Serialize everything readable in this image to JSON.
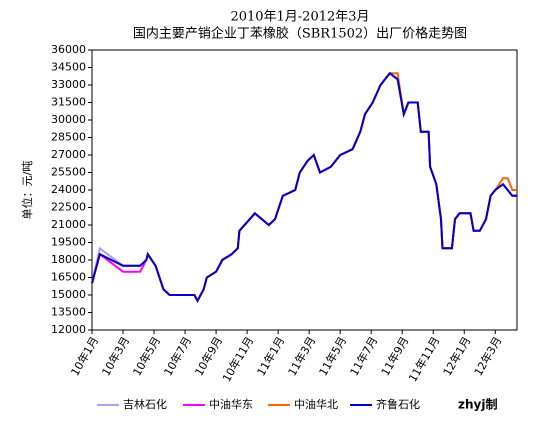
{
  "chart_data": {
    "type": "line",
    "title": "2010年1月-2012年3月",
    "subtitle": "国内主要产销企业丁苯橡胶（SBR1502）出厂价格走势图",
    "y_label": "单位：元/吨",
    "credit": "zhyj制",
    "legend": "bottom",
    "grid": false,
    "xlim": [
      0,
      27.4
    ],
    "xticks": [
      {
        "value": 0,
        "label": "10年1月"
      },
      {
        "value": 2,
        "label": "10年3月"
      },
      {
        "value": 4,
        "label": "10年5月"
      },
      {
        "value": 6,
        "label": "10年7月"
      },
      {
        "value": 8,
        "label": "10年9月"
      },
      {
        "value": 10,
        "label": "10年11月"
      },
      {
        "value": 12,
        "label": "11年1月"
      },
      {
        "value": 14,
        "label": "11年3月"
      },
      {
        "value": 16,
        "label": "11年5月"
      },
      {
        "value": 18,
        "label": "11年7月"
      },
      {
        "value": 20,
        "label": "11年9月"
      },
      {
        "value": 22,
        "label": "11年11月"
      },
      {
        "value": 24,
        "label": "12年1月"
      },
      {
        "value": 26,
        "label": "12年3月"
      }
    ],
    "ylim": [
      12000,
      36000
    ],
    "yticks": [
      12000,
      13500,
      15000,
      16500,
      18000,
      19500,
      21000,
      22500,
      24000,
      25500,
      27000,
      28500,
      30000,
      31500,
      33000,
      34500,
      36000
    ],
    "x": [
      0,
      0.5,
      2,
      3.1,
      3.5,
      3.6,
      4.1,
      4.6,
      5,
      6.6,
      6.8,
      7.2,
      7.4,
      8,
      8.4,
      9,
      9.4,
      9.5,
      10.5,
      11.4,
      11.8,
      12.3,
      13.1,
      13.4,
      13.9,
      14.3,
      14.7,
      15.4,
      16,
      16.8,
      17.3,
      17.6,
      18.1,
      18.6,
      19.2,
      19.7,
      20.1,
      20.4,
      21,
      21.2,
      21.7,
      21.8,
      22.2,
      22.5,
      22.6,
      23.2,
      23.4,
      23.7,
      24.4,
      24.6,
      25,
      25.4,
      25.7,
      26,
      26.5,
      26.8,
      27.1,
      27.4
    ],
    "series": [
      {
        "name": "吉林石化",
        "color": "#b09cf0",
        "values": [
          16000,
          19000,
          17500,
          17500,
          18000,
          18500,
          17500,
          15500,
          15000,
          15000,
          14500,
          15500,
          16500,
          17000,
          18000,
          18500,
          19000,
          20500,
          22000,
          21000,
          21500,
          23500,
          24000,
          25500,
          26500,
          27000,
          25500,
          26000,
          27000,
          27500,
          29000,
          30500,
          31500,
          33000,
          34000,
          33500,
          30500,
          31500,
          31500,
          29000,
          29000,
          26000,
          24500,
          21500,
          19000,
          19000,
          21500,
          22000,
          22000,
          20500,
          20500,
          21500,
          23500,
          24000,
          24500,
          24000,
          23500,
          23500
        ]
      },
      {
        "name": "中油华东",
        "color": "#ff00ff",
        "values": [
          16000,
          18500,
          17000,
          17000,
          18000,
          18500,
          17500,
          15500,
          15000,
          15000,
          14500,
          15500,
          16500,
          17000,
          18000,
          18500,
          19000,
          20500,
          22000,
          21000,
          21500,
          23500,
          24000,
          25500,
          26500,
          27000,
          25500,
          26000,
          27000,
          27500,
          29000,
          30500,
          31500,
          33000,
          34000,
          33500,
          30500,
          31500,
          31500,
          29000,
          29000,
          26000,
          24500,
          21500,
          19000,
          19000,
          21500,
          22000,
          22000,
          20500,
          20500,
          21500,
          23500,
          24000,
          24500,
          24000,
          23500,
          23500
        ]
      },
      {
        "name": "中油华北",
        "color": "#ff6600",
        "values": [
          16000,
          18500,
          17500,
          17500,
          18000,
          18500,
          17500,
          15500,
          15000,
          15000,
          14500,
          15500,
          16500,
          17000,
          18000,
          18500,
          19000,
          20500,
          22000,
          21000,
          21500,
          23500,
          24000,
          25500,
          26500,
          27000,
          25500,
          26000,
          27000,
          27500,
          29000,
          30500,
          31500,
          33000,
          34000,
          34000,
          30500,
          31500,
          31500,
          29000,
          29000,
          26000,
          24500,
          21500,
          19000,
          19000,
          21500,
          22000,
          22000,
          20500,
          20500,
          21500,
          23500,
          24000,
          25000,
          25000,
          24000,
          24000
        ]
      },
      {
        "name": "齐鲁石化",
        "color": "#0000cc",
        "values": [
          16000,
          18500,
          17500,
          17500,
          18000,
          18500,
          17500,
          15500,
          15000,
          15000,
          14500,
          15500,
          16500,
          17000,
          18000,
          18500,
          19000,
          20500,
          22000,
          21000,
          21500,
          23500,
          24000,
          25500,
          26500,
          27000,
          25500,
          26000,
          27000,
          27500,
          29000,
          30500,
          31500,
          33000,
          34000,
          33500,
          30500,
          31500,
          31500,
          29000,
          29000,
          26000,
          24500,
          21500,
          19000,
          19000,
          21500,
          22000,
          22000,
          20500,
          20500,
          21500,
          23500,
          24000,
          24500,
          24000,
          23500,
          23500
        ]
      }
    ]
  }
}
